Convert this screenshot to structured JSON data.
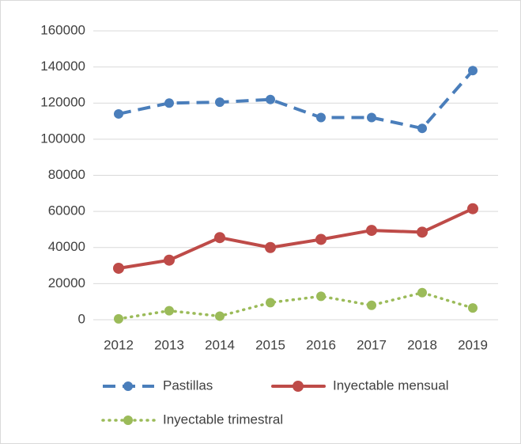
{
  "chart_data": {
    "type": "line",
    "categories": [
      "2012",
      "2013",
      "2014",
      "2015",
      "2016",
      "2017",
      "2018",
      "2019"
    ],
    "series": [
      {
        "name": "Pastillas",
        "color": "#4a7ebb",
        "values": [
          114000,
          120000,
          120500,
          122000,
          112000,
          112000,
          106000,
          138000
        ]
      },
      {
        "name": "Inyectable mensual",
        "color": "#be4b48",
        "values": [
          28500,
          33000,
          45500,
          40000,
          44500,
          49500,
          48500,
          61500
        ]
      },
      {
        "name": "Inyectable trimestral",
        "color": "#9bbb59",
        "values": [
          500,
          5000,
          2000,
          9500,
          13000,
          8000,
          15000,
          6500
        ]
      }
    ],
    "ylim": [
      0,
      160000
    ],
    "yticks": [
      0,
      20000,
      40000,
      60000,
      80000,
      100000,
      120000,
      140000,
      160000
    ],
    "grid": true,
    "legend": "bottom"
  }
}
